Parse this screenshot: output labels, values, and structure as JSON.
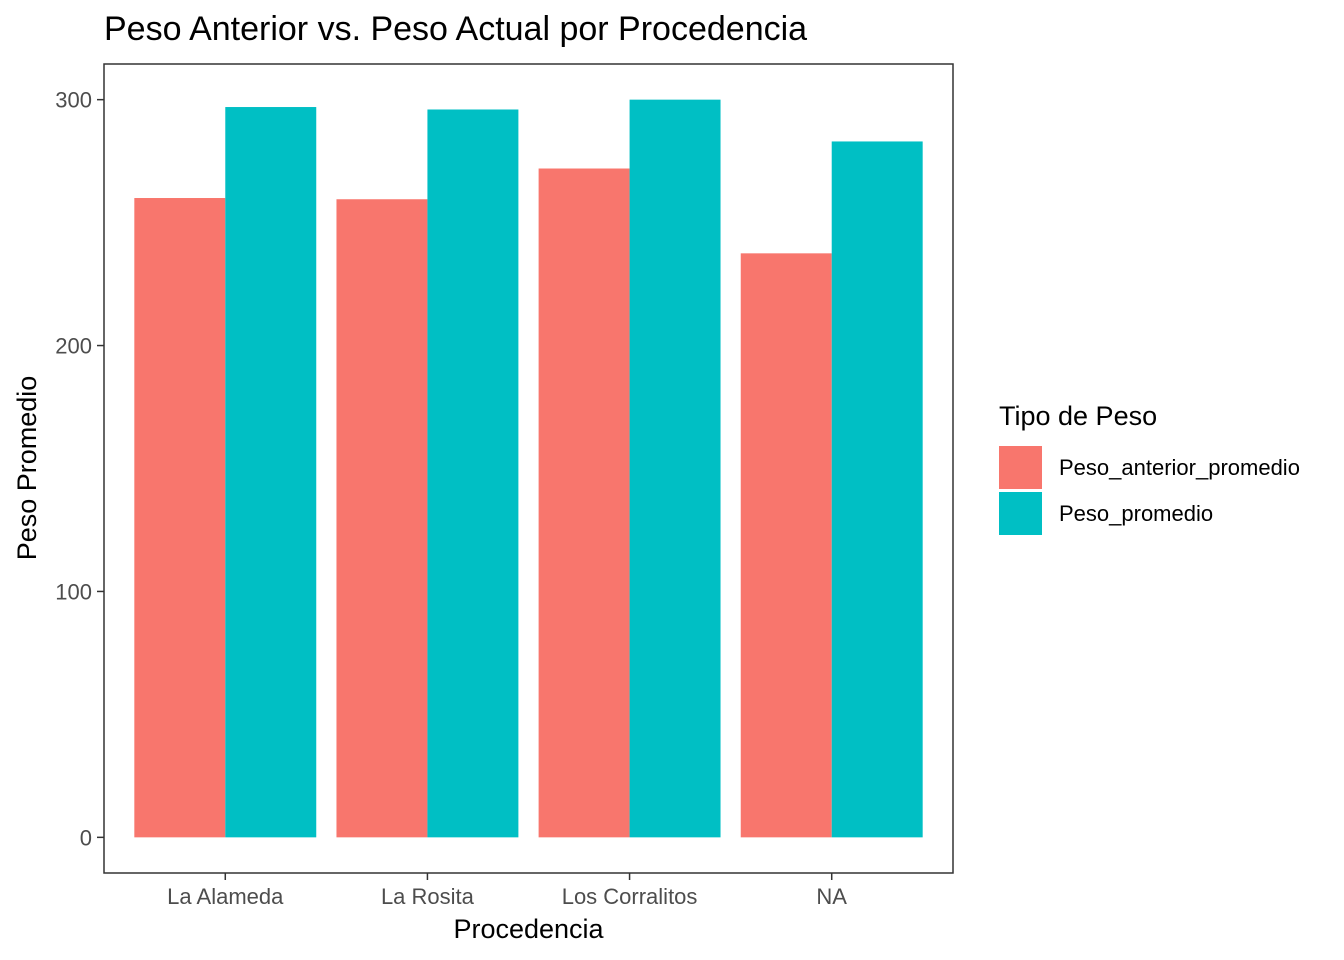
{
  "chart_data": {
    "type": "bar",
    "title": "Peso Anterior vs. Peso Actual por Procedencia",
    "xlabel": "Procedencia",
    "ylabel": "Peso Promedio",
    "categories": [
      "La Alameda",
      "La Rosita",
      "Los Corralitos",
      "NA"
    ],
    "series": [
      {
        "name": "Peso_anterior_promedio",
        "color": "#F8766D",
        "values": [
          260,
          259.5,
          272,
          237.5
        ]
      },
      {
        "name": "Peso_promedio",
        "color": "#00BFC4",
        "values": [
          297,
          296,
          300,
          283
        ]
      }
    ],
    "ylim": [
      -14.5,
      314.5
    ],
    "yticks": [
      0,
      100,
      200,
      300
    ],
    "grid": false,
    "legend": {
      "title": "Tipo de Peso",
      "position": "right"
    }
  }
}
